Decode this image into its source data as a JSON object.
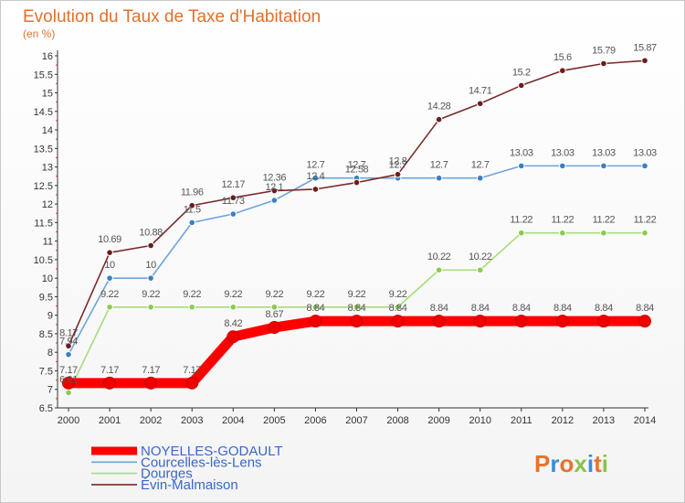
{
  "chart_data": {
    "type": "line",
    "title": "Evolution du Taux de Taxe d'Habitation",
    "unit_label": "(en %)",
    "xlabel": "",
    "ylabel": "",
    "x": [
      "2000",
      "2001",
      "2002",
      "2003",
      "2004",
      "2005",
      "2006",
      "2007",
      "2008",
      "2009",
      "2010",
      "2011",
      "2012",
      "2013",
      "2014"
    ],
    "ylim": [
      6.5,
      16
    ],
    "ytick_step": 0.5,
    "grid": false,
    "legend_position": "bottom-left",
    "series": [
      {
        "name": "NOYELLES-GODAULT",
        "color": "#ff0000",
        "marker_fill": "#ee0000",
        "emphasis": true,
        "values": [
          7.17,
          7.17,
          7.17,
          7.17,
          8.42,
          8.67,
          8.84,
          8.84,
          8.84,
          8.84,
          8.84,
          8.84,
          8.84,
          8.84,
          8.84
        ]
      },
      {
        "name": "Courcelles-lès-Lens",
        "color": "#6fa4d8",
        "marker_fill": "#3b7fc4",
        "emphasis": false,
        "values": [
          7.94,
          10,
          10,
          11.5,
          11.73,
          12.1,
          12.7,
          12.7,
          12.7,
          12.7,
          12.7,
          13.03,
          13.03,
          13.03,
          13.03
        ]
      },
      {
        "name": "Dourges",
        "color": "#a6de7c",
        "marker_fill": "#8acb52",
        "emphasis": false,
        "values": [
          6.91,
          9.22,
          9.22,
          9.22,
          9.22,
          9.22,
          9.22,
          9.22,
          9.22,
          10.22,
          10.22,
          11.22,
          11.22,
          11.22,
          11.22
        ]
      },
      {
        "name": "Évin-Malmaison",
        "color": "#7a2a2a",
        "marker_fill": "#6b1c1c",
        "emphasis": false,
        "values": [
          8.17,
          10.69,
          10.88,
          11.96,
          12.17,
          12.36,
          12.4,
          12.58,
          12.8,
          14.28,
          14.71,
          15.2,
          15.6,
          15.79,
          15.87
        ]
      }
    ],
    "data_labels": {
      "NOYELLES-GODAULT": [
        "7.17",
        "7.17",
        "7.17",
        "7.17",
        "8.42",
        "8.67",
        "8.84",
        "8.84",
        "8.84",
        "8.84",
        "8.84",
        "8.84",
        "8.84",
        "8.84",
        "8.84"
      ],
      "Courcelles-lès-Lens": [
        "7.94",
        "10",
        "10",
        "11.5",
        "11.73",
        "12.1",
        "12.7",
        "12.7",
        "12.7",
        "12.7",
        "12.7",
        "13.03",
        "13.03",
        "13.03",
        "13.03"
      ],
      "Dourges": [
        "6.91",
        "9.22",
        "9.22",
        "9.22",
        "9.22",
        "9.22",
        "9.22",
        "9.22",
        "9.22",
        "10.22",
        "10.22",
        "11.22",
        "11.22",
        "11.22",
        "11.22"
      ],
      "Évin-Malmaison": [
        "8.17",
        "10.69",
        "10.88",
        "11.96",
        "12.17",
        "12.36",
        "12.4",
        "12.58",
        "12.8",
        "14.28",
        "14.71",
        "15.2",
        "15.6",
        "15.79",
        "15.87"
      ]
    }
  },
  "branding": {
    "logo_text": "Proxiti",
    "logo_colors": [
      "#e8732c",
      "#3a8fd6",
      "#e8732c",
      "#8bc34a",
      "#3a8fd6",
      "#e8732c",
      "#8bc34a"
    ]
  }
}
